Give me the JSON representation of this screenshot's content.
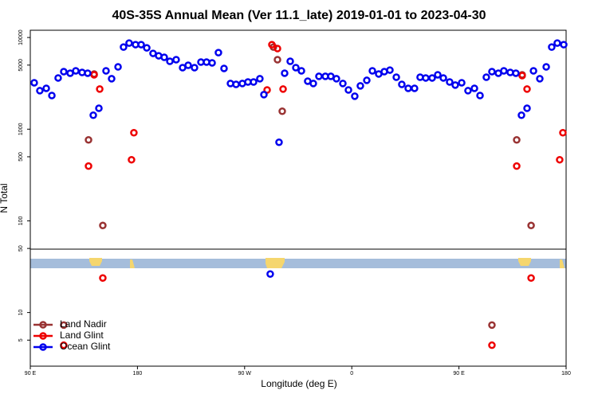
{
  "chart_data": {
    "type": "scatter",
    "title": "40S-35S Annual Mean (Ver 11.1_late)   2019-01-01 to 2023-04-30",
    "x_label": "Longitude (deg E)",
    "y_label": "N Total",
    "log_y": true,
    "legend": "lower left",
    "xlim": [
      90,
      540
    ],
    "ylim": [
      2.6,
      12000
    ],
    "xticks": [
      {
        "value": 90,
        "label": "90 E"
      },
      180,
      {
        "value": 270,
        "label": "90 W"
      },
      {
        "value": 360,
        "label": "0"
      },
      {
        "value": 450,
        "label": "90 E"
      },
      {
        "value": 540,
        "label": "180"
      }
    ],
    "yticks": [
      5,
      10,
      50,
      100,
      500,
      1000,
      5000,
      10000
    ],
    "series": [
      {
        "name": "Land Nadir",
        "color": "#993333",
        "x": [
          138.9,
          143.6,
          150.9,
          294.2,
          297.6,
          301.6,
          498.5,
          503.1,
          510.6,
          477.7,
          118.1
        ],
        "values": [
          764,
          4000,
          89,
          7870,
          5730,
          1570,
          764,
          3920,
          89,
          7.3,
          7.3
        ]
      },
      {
        "name": "Land Glint",
        "color": "#ee0000",
        "x": [
          138.9,
          143.6,
          148.3,
          150.9,
          175.0,
          177.0,
          292.9,
          297.6,
          288.9,
          302.3,
          498.5,
          503.1,
          507.2,
          510.6,
          534.6,
          537.3,
          477.7,
          118.1
        ],
        "values": [
          396,
          3920,
          2740,
          23.8,
          464,
          915,
          8360,
          7570,
          2680,
          2740,
          396,
          3840,
          2740,
          23.8,
          464,
          915,
          4.4,
          4.4
        ]
      },
      {
        "name": "Ocean Glint",
        "color": "#0000ee",
        "x": [
          93.3,
          98.0,
          103.4,
          108.1,
          113.4,
          118.1,
          123.5,
          128.2,
          133.5,
          138.2,
          142.9,
          147.6,
          153.6,
          158.3,
          163.7,
          168.3,
          173.0,
          178.4,
          183.1,
          187.8,
          193.1,
          197.8,
          202.5,
          207.2,
          212.5,
          217.9,
          222.6,
          227.9,
          233.3,
          238.0,
          242.7,
          248.0,
          252.7,
          258.1,
          262.8,
          268.1,
          272.8,
          277.5,
          282.8,
          286.2,
          291.5,
          298.9,
          303.6,
          308.3,
          313.0,
          317.7,
          323.0,
          327.7,
          332.4,
          337.8,
          342.4,
          347.1,
          352.5,
          357.2,
          362.5,
          367.2,
          372.6,
          377.3,
          382.6,
          387.3,
          392.0,
          397.4,
          402.0,
          407.4,
          412.7,
          417.4,
          422.1,
          427.5,
          432.2,
          436.9,
          442.2,
          446.9,
          452.3,
          457.6,
          463.0,
          467.7,
          473.0,
          477.7,
          483.1,
          487.7,
          493.1,
          497.8,
          502.5,
          507.2,
          512.6,
          517.9,
          523.3,
          527.9,
          532.6,
          538.0
        ],
        "values": [
          3210,
          2630,
          2790,
          2330,
          3620,
          4240,
          4080,
          4330,
          4160,
          4080,
          1420,
          1690,
          4330,
          3550,
          4780,
          7870,
          8690,
          8360,
          8360,
          7710,
          6710,
          6320,
          6080,
          5500,
          5730,
          4690,
          4980,
          4690,
          5390,
          5390,
          5290,
          6840,
          4600,
          3150,
          3080,
          3150,
          3270,
          3270,
          3550,
          2380,
          26.3,
          720,
          4080,
          5500,
          4690,
          4330,
          3340,
          3150,
          3770,
          3770,
          3770,
          3550,
          3150,
          2680,
          2290,
          2970,
          3410,
          4330,
          4000,
          4240,
          4410,
          3690,
          3080,
          2790,
          2790,
          3690,
          3620,
          3620,
          3920,
          3620,
          3270,
          3030,
          3210,
          2630,
          2790,
          2330,
          3690,
          4240,
          4080,
          4330,
          4160,
          4080,
          1420,
          1690,
          4330,
          3550,
          4780,
          7870,
          8690,
          8360
        ]
      }
    ]
  }
}
